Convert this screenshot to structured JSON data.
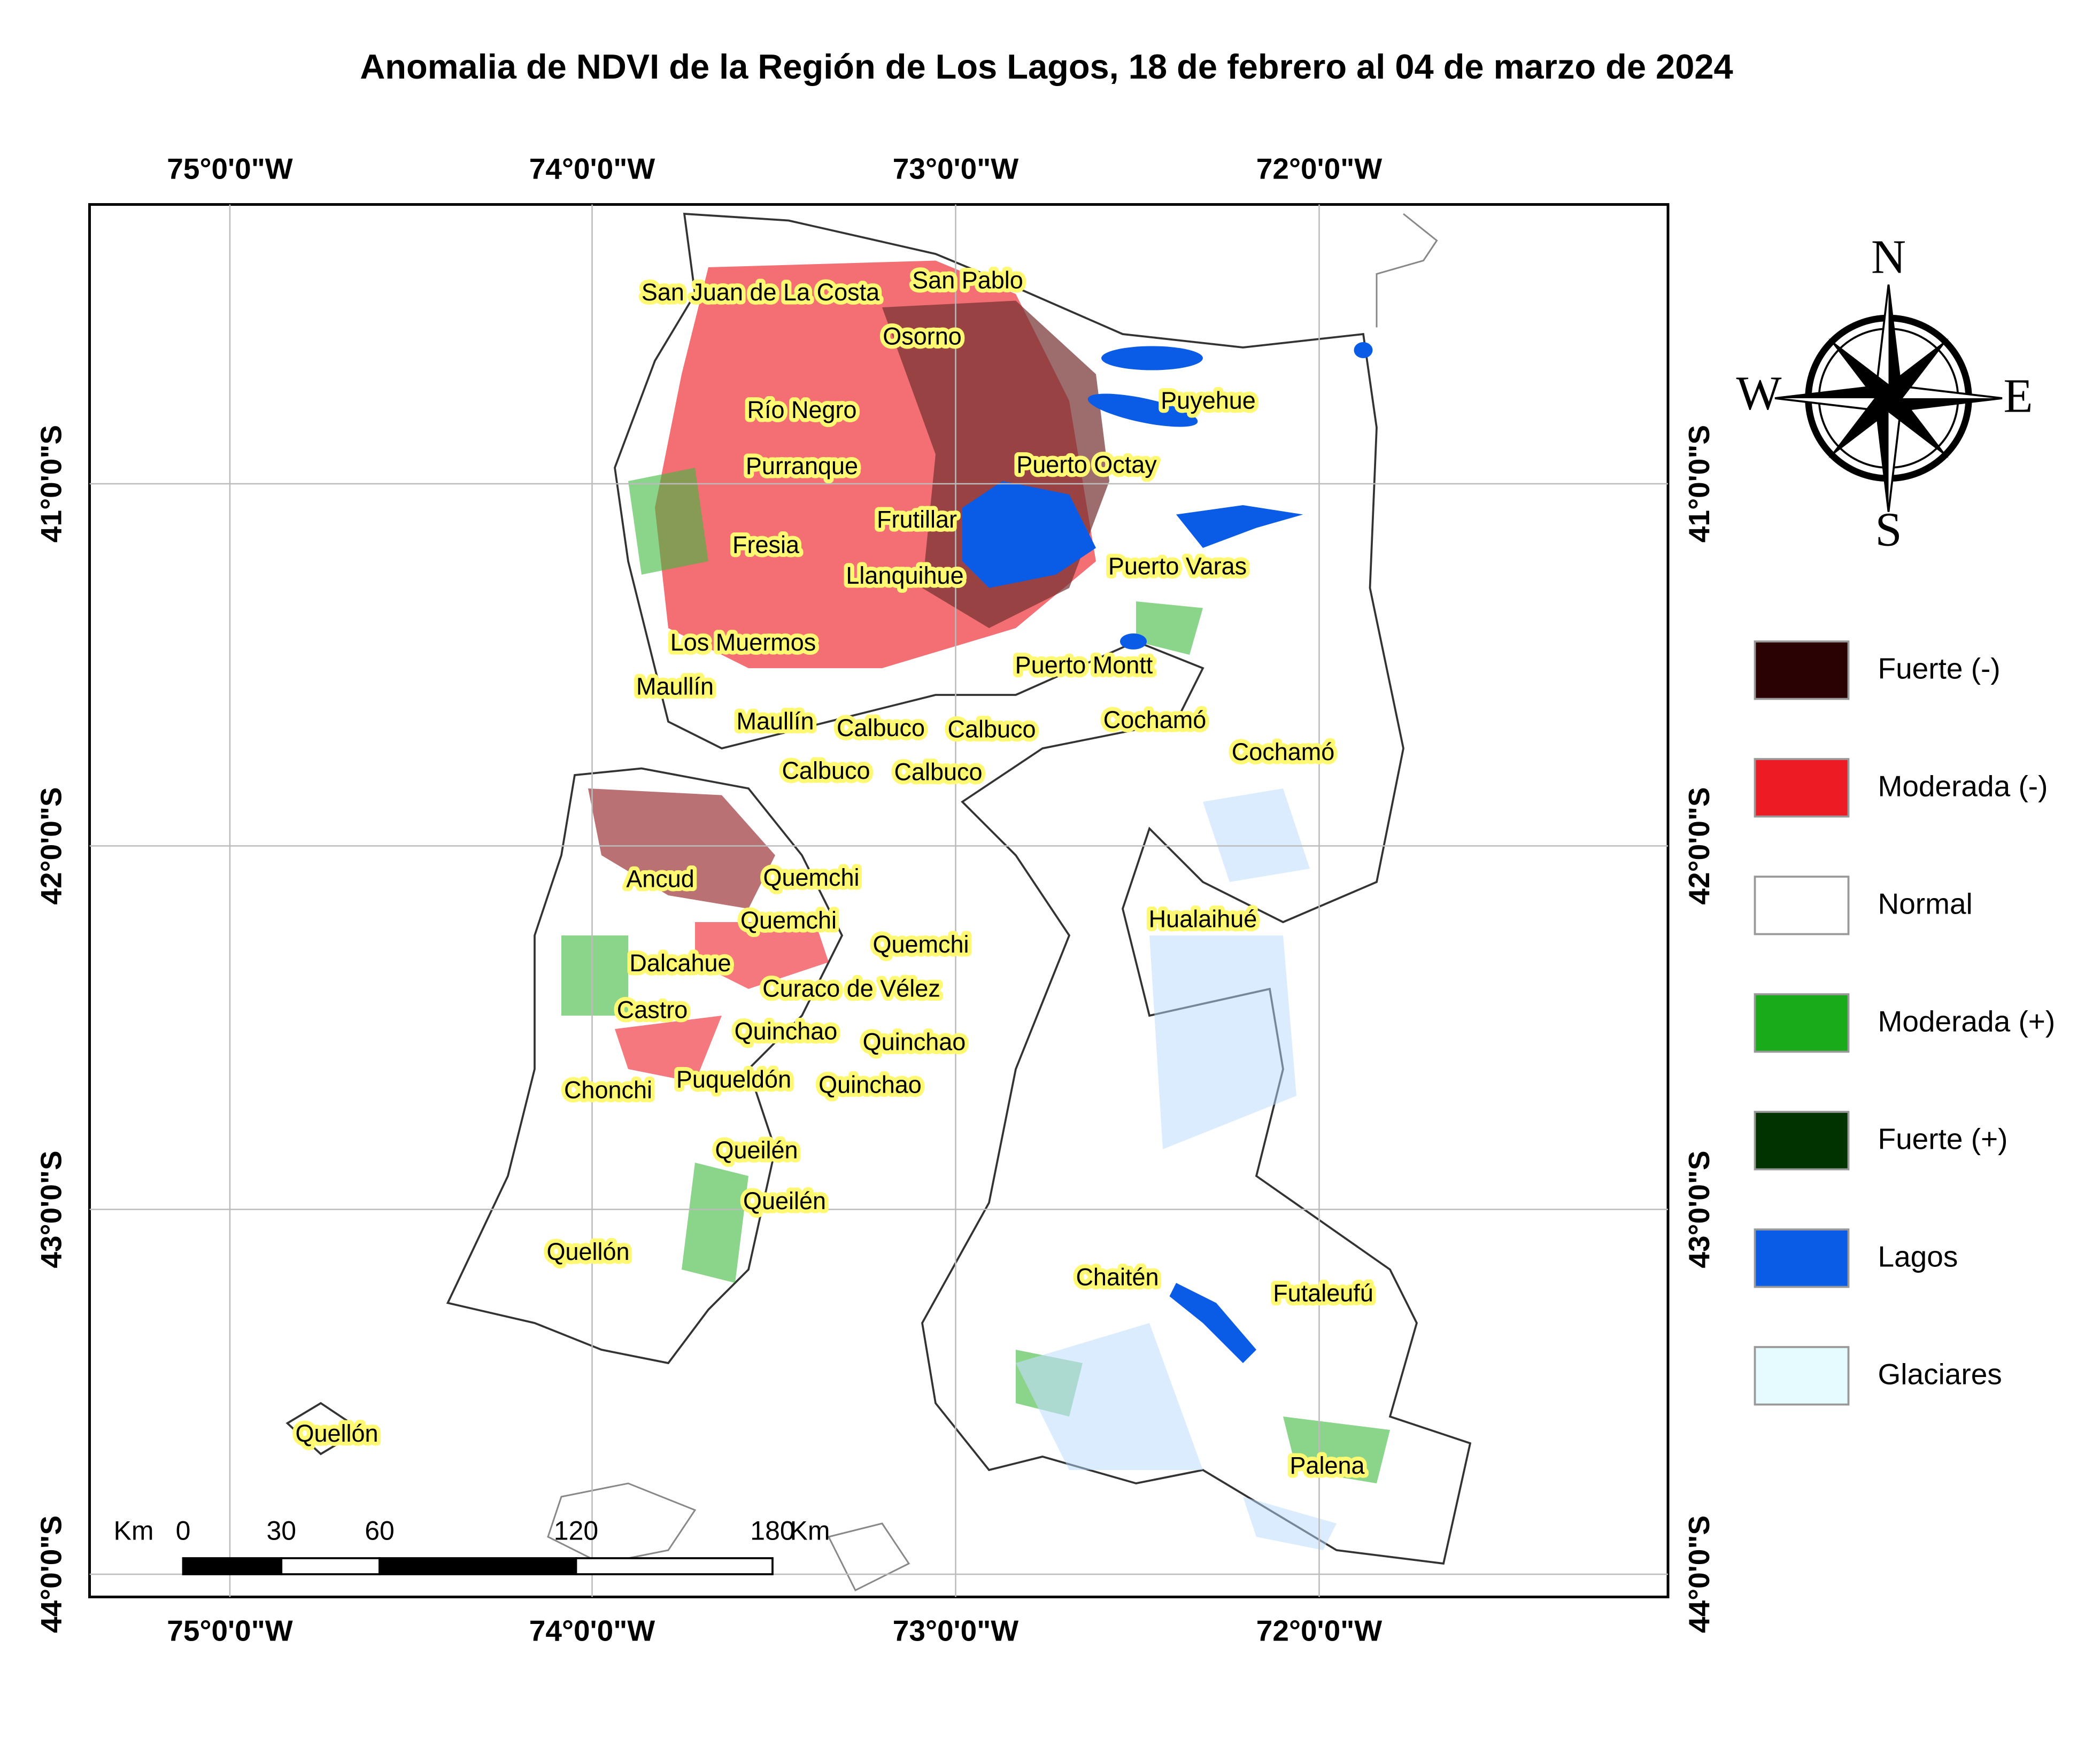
{
  "title": "Anomalia de NDVI de la Región de Los Lagos, 18 de febrero al 04 de marzo de 2024",
  "graticule": {
    "longitude_labels": [
      "75°0'0\"W",
      "74°0'0\"W",
      "73°0'0\"W",
      "72°0'0\"W"
    ],
    "latitude_labels": [
      "41°0'0\"S",
      "42°0'0\"S",
      "43°0'0\"S",
      "44°0'0\"S"
    ]
  },
  "place_labels": [
    "San Juan de La Costa",
    "San Pablo",
    "Osorno",
    "Puyehue",
    "Río Negro",
    "Purranque",
    "Puerto Octay",
    "Frutillar",
    "Fresia",
    "Llanquihue",
    "Puerto Varas",
    "Los Muermos",
    "Puerto Montt",
    "Maullín",
    "Maullín",
    "Calbuco",
    "Calbuco",
    "Cochamó",
    "Cochamó",
    "Calbuco",
    "Calbuco",
    "Ancud",
    "Quemchi",
    "Quemchi",
    "Hualaihué",
    "Quemchi",
    "Dalcahue",
    "Curaco de Vélez",
    "Castro",
    "Quinchao",
    "Quinchao",
    "Puqueldón",
    "Quinchao",
    "Chonchi",
    "Queilén",
    "Queilén",
    "Quellón",
    "Chaitén",
    "Futaleufú",
    "Quellón",
    "Palena"
  ],
  "legend": {
    "items": [
      {
        "label": "Fuerte (-)",
        "color": "#2a0204"
      },
      {
        "label": "Moderada (-)",
        "color": "#ed1c24"
      },
      {
        "label": "Normal",
        "color": "#ffffff"
      },
      {
        "label": "Moderada (+)",
        "color": "#1aab1a"
      },
      {
        "label": "Fuerte (+)",
        "color": "#003300"
      },
      {
        "label": "Lagos",
        "color": "#0a5ce6"
      },
      {
        "label": "Glaciares",
        "color": "#e6fbff"
      }
    ]
  },
  "scale_bar": {
    "unit": "Km",
    "ticks": [
      0,
      30,
      60,
      120,
      180
    ]
  },
  "compass": {
    "north": "N",
    "south": "S",
    "east": "E",
    "west": "W"
  }
}
